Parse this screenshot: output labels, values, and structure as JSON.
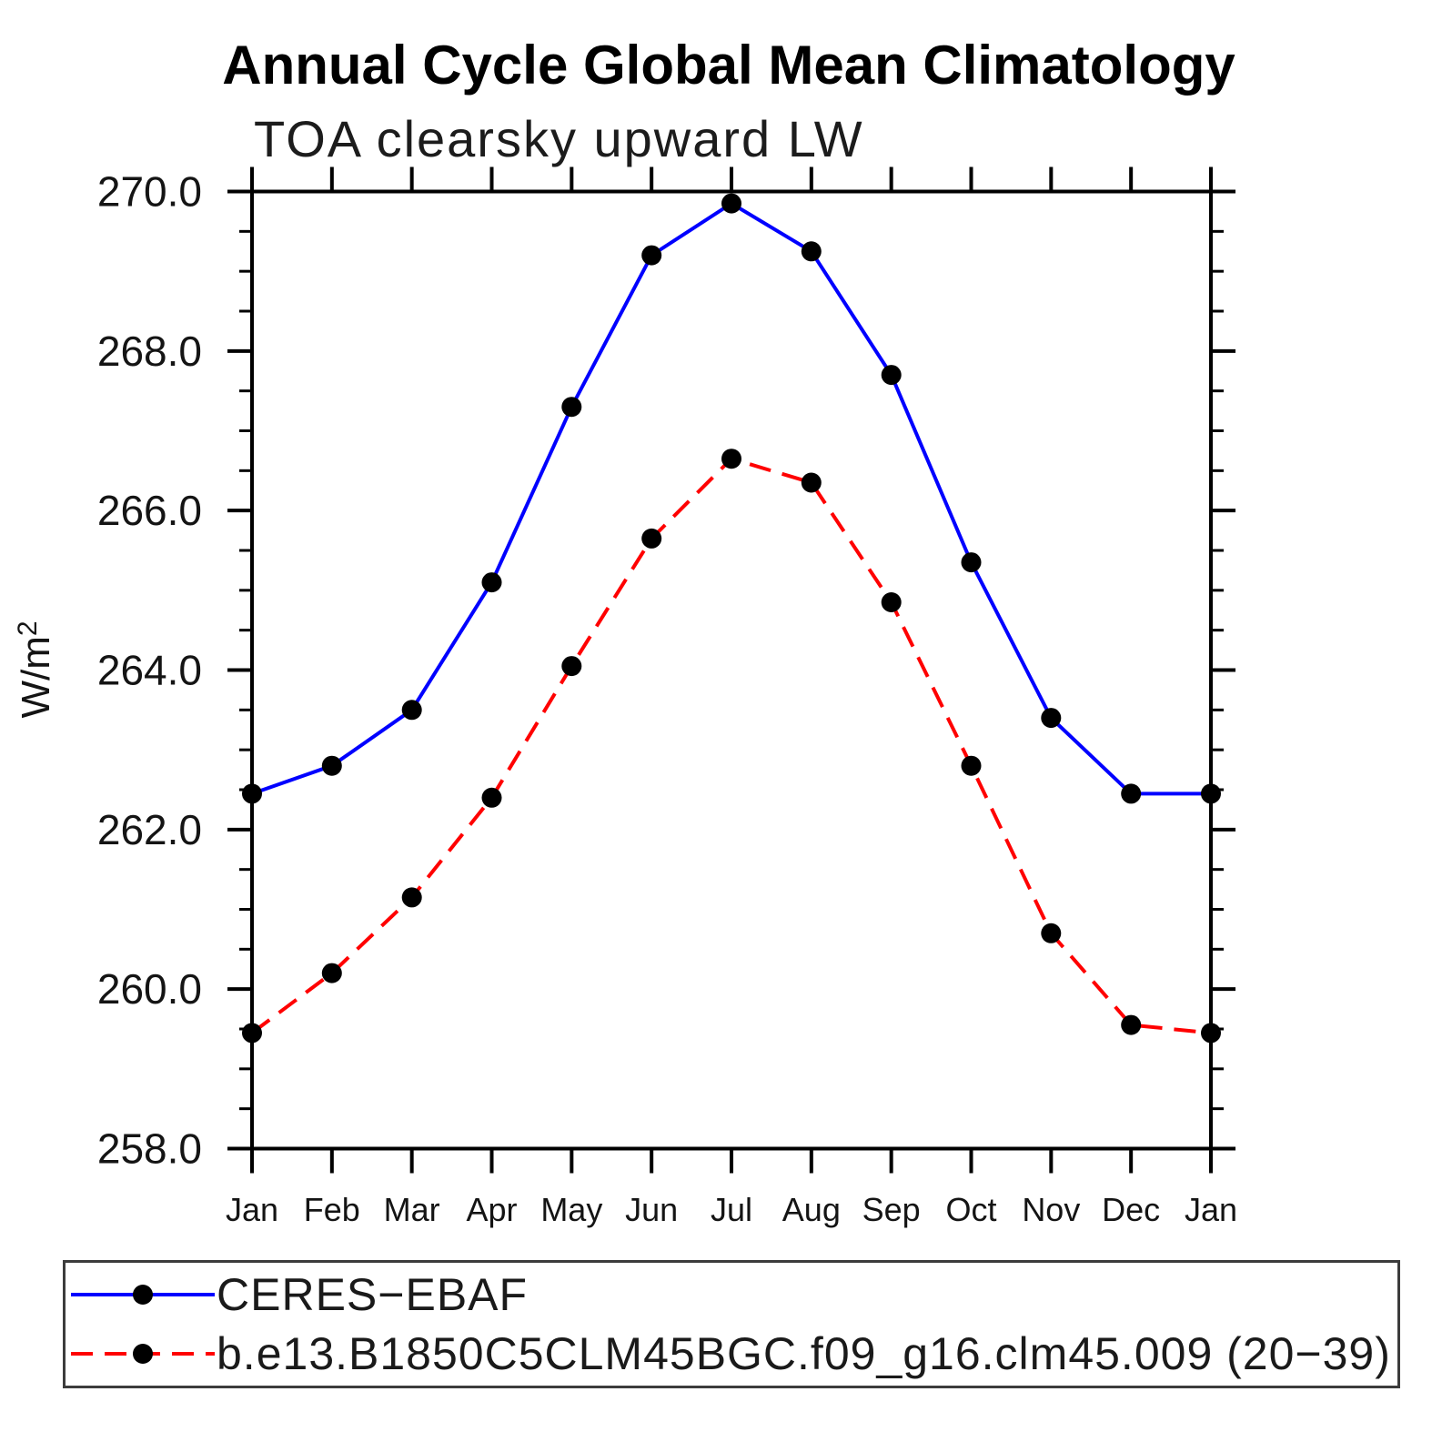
{
  "title": "Annual Cycle Global Mean Climatology",
  "subtitle": "TOA clearsky upward LW",
  "chart_data": {
    "type": "line",
    "title": "Annual Cycle Global Mean Climatology",
    "subtitle": "TOA clearsky upward LW",
    "ylabel": "W/m²",
    "xlabel": "",
    "categories": [
      "Jan",
      "Feb",
      "Mar",
      "Apr",
      "May",
      "Jun",
      "Jul",
      "Aug",
      "Sep",
      "Oct",
      "Nov",
      "Dec",
      "Jan"
    ],
    "ylim": [
      258.0,
      270.0
    ],
    "ytick_major_step": 2.0,
    "ytick_minor_step": 0.5,
    "ytick_labels": [
      "258.0",
      "260.0",
      "262.0",
      "264.0",
      "266.0",
      "268.0",
      "270.0"
    ],
    "grid": false,
    "tick_style": "outward-all-four-sides",
    "legend_position": "boxed-below-plot",
    "series": [
      {
        "name": "CERES−EBAF",
        "color": "#0000ff",
        "line_style": "solid",
        "marker": "filled-circle",
        "marker_color": "#000000",
        "values": [
          262.45,
          262.8,
          263.5,
          265.1,
          267.3,
          269.2,
          269.85,
          269.25,
          267.7,
          265.35,
          263.4,
          262.45,
          262.45
        ]
      },
      {
        "name": "b.e13.B1850C5CLM45BGC.f09_g16.clm45.009 (20−39)",
        "color": "#ff0000",
        "line_style": "dashed",
        "marker": "filled-circle",
        "marker_color": "#000000",
        "values": [
          259.45,
          260.2,
          261.15,
          262.4,
          264.05,
          265.65,
          266.65,
          266.35,
          264.85,
          262.8,
          260.7,
          259.55,
          259.45
        ]
      }
    ]
  }
}
